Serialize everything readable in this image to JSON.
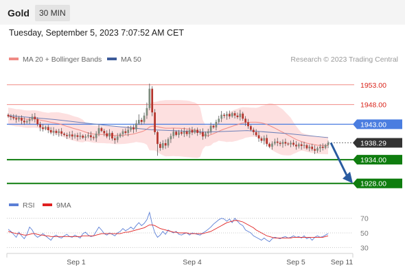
{
  "header": {
    "title": "Gold",
    "timeframe": "30 MIN",
    "timestamp": "Tuesday, September 5, 2023 7:07:52 AM CET"
  },
  "legend": {
    "items": [
      {
        "label": "MA 20 + Bollinger Bands",
        "color": "#f08a84"
      },
      {
        "label": "MA 50",
        "color": "#3c5a99"
      }
    ],
    "source": "Research © 2023 Trading Central"
  },
  "rsi_legend": {
    "items": [
      {
        "label": "RSI",
        "color": "#5b7fd6"
      },
      {
        "label": "9MA",
        "color": "#e02020"
      }
    ]
  },
  "colors": {
    "resistance": "#f08a84",
    "resistance_text": "#d9251c",
    "pivot": "#4a7de0",
    "support": "#0f7d0f",
    "last_price": "#333333",
    "candle_up": "#7d8c7d",
    "candle_down": "#b4332b",
    "band_fill": "#fde0e0",
    "ma50": "#6b7fb8",
    "arrow": "#2a5ba0"
  },
  "chart_data": [
    {
      "type": "candlestick",
      "instrument": "Gold",
      "interval": "30 MIN",
      "x_ticks": [
        "Sep 1",
        "Sep 4",
        "Sep 5",
        "Sep 11"
      ],
      "ylim": [
        1925,
        1958
      ],
      "levels": [
        {
          "value": 1953.0,
          "label": "1953.00",
          "kind": "resistance"
        },
        {
          "value": 1948.0,
          "label": "1948.00",
          "kind": "resistance"
        },
        {
          "value": 1943.0,
          "label": "1943.00",
          "kind": "pivot"
        },
        {
          "value": 1938.29,
          "label": "1938.29",
          "kind": "last"
        },
        {
          "value": 1934.0,
          "label": "1934.00",
          "kind": "support"
        },
        {
          "value": 1928.0,
          "label": "1928.00",
          "kind": "support"
        }
      ],
      "forecast": {
        "from": 1938.29,
        "to": 1928.0,
        "direction": "down"
      },
      "series": [
        {
          "name": "MA 20 + Bollinger Bands"
        },
        {
          "name": "MA 50"
        }
      ],
      "close": [
        1945.0,
        1944.8,
        1944.5,
        1944.2,
        1944.6,
        1943.9,
        1943.5,
        1943.8,
        1944.2,
        1944.9,
        1944.3,
        1943.0,
        1942.2,
        1941.8,
        1942.3,
        1941.5,
        1940.9,
        1941.3,
        1940.8,
        1941.2,
        1940.6,
        1940.3,
        1940.0,
        1940.4,
        1939.9,
        1940.2,
        1939.8,
        1940.1,
        1939.6,
        1939.9,
        1940.2,
        1939.7,
        1939.5,
        1940.6,
        1942.0,
        1941.3,
        1940.7,
        1939.9,
        1940.8,
        1939.4,
        1939.0,
        1939.9,
        1940.5,
        1941.2,
        1940.8,
        1941.6,
        1942.2,
        1941.7,
        1943.2,
        1944.1,
        1943.6,
        1945.2,
        1947.1,
        1952.0,
        1946.0,
        1941.0,
        1938.0,
        1937.0,
        1938.2,
        1937.6,
        1939.2,
        1940.0,
        1941.1,
        1940.3,
        1941.0,
        1940.6,
        1941.2,
        1940.5,
        1941.5,
        1940.9,
        1941.6,
        1940.8,
        1941.0,
        1939.9,
        1940.7,
        1941.2,
        1942.6,
        1942.2,
        1943.6,
        1944.4,
        1945.4,
        1945.1,
        1945.6,
        1945.0,
        1945.8,
        1945.2,
        1944.8,
        1945.7,
        1944.4,
        1943.5,
        1942.5,
        1941.6,
        1941.0,
        1940.2,
        1939.4,
        1938.8,
        1939.5,
        1938.0,
        1937.3,
        1938.1,
        1938.6,
        1938.3,
        1938.0,
        1938.5,
        1938.1,
        1937.9,
        1938.3,
        1937.8,
        1937.4,
        1937.9,
        1937.5,
        1937.7,
        1936.9,
        1937.3,
        1936.7,
        1936.3,
        1936.9,
        1937.3,
        1937.0,
        1937.7,
        1938.29
      ],
      "rsi": {
        "ylim": [
          20,
          80
        ],
        "ticks": [
          "70",
          "50",
          "30"
        ],
        "series": [
          {
            "name": "RSI",
            "values": [
              55,
              52,
              48,
              44,
              51,
              46,
              42,
              48,
              58,
              54,
              47,
              44,
              46,
              49,
              46,
              43,
              40,
              45,
              47,
              44,
              43,
              46,
              48,
              45,
              44,
              47,
              45,
              43,
              49,
              51,
              47,
              45,
              46,
              52,
              58,
              54,
              49,
              47,
              50,
              48,
              46,
              50,
              52,
              56,
              53,
              55,
              58,
              55,
              60,
              64,
              60,
              63,
              68,
              78,
              62,
              50,
              44,
              47,
              52,
              48,
              54,
              52,
              50,
              52,
              48,
              47,
              49,
              50,
              47,
              50,
              49,
              48,
              47,
              50,
              52,
              55,
              58,
              62,
              65,
              68,
              70,
              69,
              66,
              69,
              64,
              70,
              66,
              62,
              60,
              54,
              52,
              50,
              46,
              44,
              42,
              40,
              43,
              40,
              38,
              42,
              44,
              43,
              42,
              44,
              45,
              43,
              44,
              46,
              44,
              45,
              43,
              46,
              42,
              44,
              40,
              44,
              46,
              44,
              45,
              47,
              49
            ]
          },
          {
            "name": "9MA",
            "values": [
              52,
              51,
              50,
              49,
              49,
              48,
              47,
              47,
              48,
              49,
              49,
              48,
              47,
              47,
              46,
              46,
              45,
              45,
              45,
              45,
              45,
              45,
              45,
              45,
              45,
              45,
              45,
              45,
              46,
              46,
              46,
              46,
              46,
              47,
              48,
              49,
              49,
              49,
              49,
              49,
              49,
              49,
              49,
              50,
              51,
              51,
              52,
              53,
              54,
              55,
              56,
              57,
              59,
              61,
              61,
              60,
              58,
              56,
              55,
              54,
              53,
              52,
              51,
              51,
              50,
              50,
              50,
              50,
              49,
              49,
              49,
              49,
              49,
              49,
              50,
              51,
              52,
              54,
              56,
              58,
              60,
              62,
              64,
              65,
              66,
              67,
              67,
              66,
              65,
              63,
              61,
              59,
              57,
              54,
              52,
              50,
              48,
              46,
              45,
              44,
              43,
              43,
              43,
              43,
              43,
              43,
              43,
              44,
              44,
              44,
              44,
              44,
              44,
              44,
              44,
              44,
              44,
              44,
              44,
              45,
              46
            ]
          }
        ]
      }
    }
  ]
}
